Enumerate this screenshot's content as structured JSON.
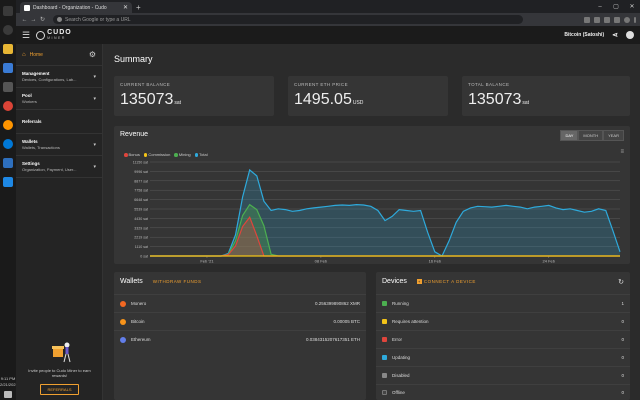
{
  "browser": {
    "tab_title": "Dashboard - Organization - Cudo",
    "address_placeholder": "Search Google or type a URL"
  },
  "os": {
    "time": "9:11 PM",
    "date": "2/21/2021"
  },
  "header": {
    "currency": "Bitcoin (Satoshi)"
  },
  "logo": {
    "top": "CUDO",
    "bottom": "MINER"
  },
  "sidebar": {
    "home": "Home",
    "sections": [
      {
        "title": "Management",
        "sub": "Devices, Configurations, Lab..."
      },
      {
        "title": "Pool",
        "sub": "Workers"
      },
      {
        "title": "Referrals",
        "sub": ""
      },
      {
        "title": "Wallets",
        "sub": "Wallets, Transactions"
      },
      {
        "title": "Settings",
        "sub": "Organization, Payment, User..."
      }
    ],
    "invite_text": "Invite people to Cudo Miner to earn rewards!",
    "referrals_button": "REFERRALS"
  },
  "summary": {
    "title": "Summary",
    "stats": [
      {
        "label": "CURRENT BALANCE",
        "value": "135073",
        "unit": "sat"
      },
      {
        "label": "CURRENT ETH PRICE",
        "value": "1495.05",
        "unit": "USD"
      },
      {
        "label": "TOTAL BALANCE",
        "value": "135073",
        "unit": "sat"
      }
    ]
  },
  "revenue": {
    "title": "Revenue",
    "ranges": [
      "DAY",
      "MONTH",
      "YEAR"
    ],
    "active_range": "DAY"
  },
  "chart_data": {
    "type": "area",
    "title": "Revenue",
    "legend": [
      "Bonus",
      "Commission",
      "Mining",
      "Total"
    ],
    "colors": {
      "Bonus": "#e0453c",
      "Commission": "#f2c318",
      "Mining": "#4caf50",
      "Total": "#2eaadc"
    },
    "y_ticks": [
      "11150 sat",
      "9996 sat",
      "8877 sat",
      "7758 sat",
      "6648 sat",
      "5539 sat",
      "4430 sat",
      "3329 sat",
      "2219 sat",
      "1110 sat",
      "0 sat"
    ],
    "ylim": [
      0,
      11150
    ],
    "x_ticks": [
      "Feb '21",
      "08 Feb",
      "16 Feb",
      "24 Feb"
    ],
    "x_tick_pos": [
      0,
      8,
      16,
      24
    ],
    "xlim": [
      -4,
      29
    ],
    "x": [
      -4,
      -3,
      -2,
      -1,
      0,
      0.5,
      1,
      1.5,
      2,
      2.5,
      3,
      3.5,
      4,
      4.5,
      5,
      5.5,
      6,
      6.5,
      7,
      7.5,
      8,
      8.5,
      9,
      9.5,
      10,
      10.5,
      11,
      11.5,
      12,
      12.5,
      13,
      13.5,
      14,
      14.5,
      15,
      15.5,
      16,
      16.5,
      17,
      17.5,
      18,
      18.5,
      19,
      19.5,
      20,
      20.5,
      21,
      21.5,
      22,
      22.5,
      23,
      23.5,
      24,
      24.5,
      25,
      25.5,
      26,
      26.5,
      27,
      27.5,
      28,
      28.5,
      29
    ],
    "series": [
      {
        "name": "Total",
        "values": [
          0,
          0,
          0,
          0,
          0,
          0,
          0,
          300,
          2500,
          7000,
          10200,
          9500,
          6500,
          5400,
          5600,
          5500,
          5300,
          5400,
          5600,
          5700,
          5800,
          5900,
          6000,
          6050,
          6000,
          6100,
          6050,
          5900,
          5400,
          4200,
          4700,
          5500,
          5400,
          5300,
          5400,
          2800,
          500,
          0,
          1800,
          4000,
          5300,
          5700,
          5900,
          5850,
          5800,
          5900,
          6000,
          5900,
          5800,
          5600,
          5800,
          5900,
          6000,
          5700,
          5500,
          5600,
          5400,
          5200,
          5300,
          5600,
          5400,
          3000,
          500
        ]
      },
      {
        "name": "Mining",
        "values": [
          0,
          0,
          0,
          0,
          0,
          0,
          0,
          200,
          1800,
          4800,
          6100,
          5500,
          3600,
          200,
          0,
          0,
          0,
          0,
          0,
          0,
          0,
          0,
          0,
          0,
          0,
          0,
          0,
          0,
          0,
          0,
          0,
          0,
          0,
          0,
          0,
          0,
          0,
          0,
          0,
          0,
          0,
          0,
          0,
          0,
          0,
          0,
          0,
          0,
          0,
          0,
          0,
          0,
          0,
          0,
          0,
          0,
          0,
          0,
          0,
          0,
          0,
          0,
          0
        ]
      },
      {
        "name": "Bonus",
        "values": [
          0,
          0,
          0,
          0,
          0,
          0,
          0,
          150,
          1200,
          3500,
          4600,
          2400,
          0,
          0,
          0,
          0,
          0,
          0,
          0,
          0,
          0,
          0,
          0,
          0,
          0,
          0,
          0,
          0,
          0,
          0,
          0,
          0,
          0,
          0,
          0,
          0,
          0,
          0,
          0,
          0,
          0,
          0,
          0,
          0,
          0,
          0,
          0,
          0,
          0,
          0,
          0,
          0,
          0,
          0,
          0,
          0,
          0,
          0,
          0,
          0,
          0,
          0,
          0
        ]
      },
      {
        "name": "Commission",
        "values": [
          0,
          0,
          0,
          0,
          0,
          0,
          0,
          0,
          0,
          0,
          0,
          0,
          0,
          0,
          0,
          0,
          0,
          0,
          0,
          0,
          0,
          0,
          0,
          0,
          0,
          0,
          0,
          0,
          0,
          0,
          0,
          0,
          0,
          0,
          0,
          0,
          0,
          0,
          0,
          0,
          0,
          0,
          0,
          0,
          0,
          0,
          0,
          0,
          0,
          0,
          0,
          0,
          0,
          0,
          0,
          0,
          0,
          0,
          0,
          0,
          0,
          0,
          0
        ]
      }
    ]
  },
  "wallets": {
    "title": "Wallets",
    "action": "WITHDRAW FUNDS",
    "items": [
      {
        "name": "Monero",
        "amount": "0.256399890862 XMR",
        "color": "#f26822"
      },
      {
        "name": "Bitcoin",
        "amount": "0.00005 BTC",
        "color": "#f7931a"
      },
      {
        "name": "Ethereum",
        "amount": "0.0384315207617351 ETH",
        "color": "#627eea"
      }
    ]
  },
  "devices": {
    "title": "Devices",
    "action": "CONNECT A DEVICE",
    "items": [
      {
        "name": "Running",
        "count": "1",
        "color": "#4caf50"
      },
      {
        "name": "Requires attention",
        "count": "0",
        "color": "#f2c318"
      },
      {
        "name": "Error",
        "count": "0",
        "color": "#e0453c"
      },
      {
        "name": "Updating",
        "count": "0",
        "color": "#2eaadc"
      },
      {
        "name": "Disabled",
        "count": "0",
        "color": "#888888"
      },
      {
        "name": "Offline",
        "count": "0",
        "color": "#444444"
      }
    ]
  }
}
